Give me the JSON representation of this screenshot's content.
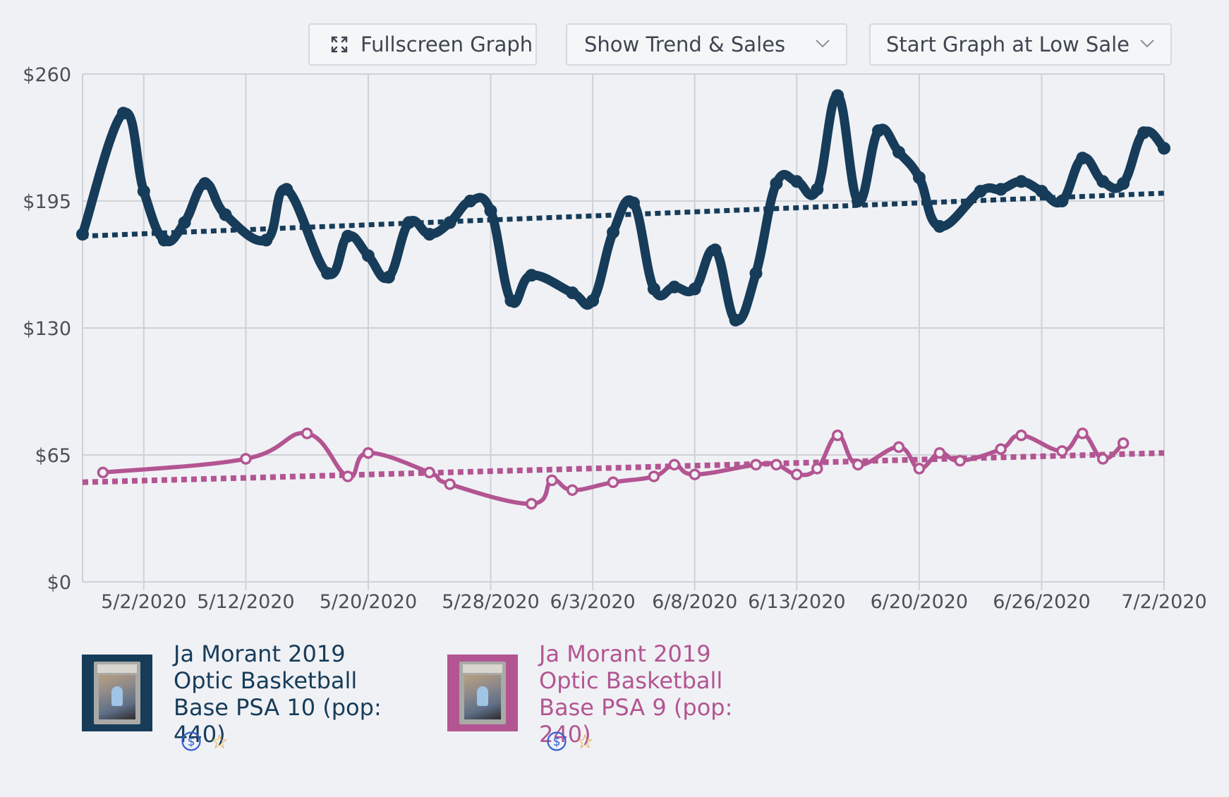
{
  "controls": {
    "fullscreen_label": "Fullscreen Graph",
    "trend_select": "Show Trend & Sales",
    "start_select": "Start Graph at Low Sale"
  },
  "colors": {
    "series1": "#163c59",
    "series2": "#b35592",
    "grid": "#cfd1d6",
    "axis_text": "#4a4f58",
    "icon_blue": "#2f5fd0",
    "icon_star": "#e0a12a"
  },
  "legend": [
    {
      "title": "Ja Morant 2019 Optic Basketball Base PSA 10 (pop: 440)",
      "color": "#163c59",
      "dollar_icon": "$",
      "star_icon": "☆"
    },
    {
      "title": "Ja Morant 2019 Optic Basketball Base PSA 9 (pop: 240)",
      "color": "#b35592",
      "dollar_icon": "$",
      "star_icon": "☆"
    }
  ],
  "chart_data": {
    "type": "line",
    "title": "",
    "xlabel": "",
    "ylabel": "",
    "ylim": [
      0,
      260
    ],
    "xlim": [
      0,
      53
    ],
    "yticks": [
      0,
      65,
      130,
      195,
      260
    ],
    "ytick_labels": [
      "$0",
      "$65",
      "$130",
      "$195",
      "$260"
    ],
    "xticks": [
      {
        "pos": 3,
        "label": "5/2/2020"
      },
      {
        "pos": 8,
        "label": "5/12/2020"
      },
      {
        "pos": 14,
        "label": "5/20/2020"
      },
      {
        "pos": 20,
        "label": "5/28/2020"
      },
      {
        "pos": 25,
        "label": "6/3/2020"
      },
      {
        "pos": 30,
        "label": "6/8/2020"
      },
      {
        "pos": 35,
        "label": "6/13/2020"
      },
      {
        "pos": 41,
        "label": "6/20/2020"
      },
      {
        "pos": 47,
        "label": "6/26/2020"
      },
      {
        "pos": 53,
        "label": "7/2/2020"
      }
    ],
    "grid": true,
    "series": [
      {
        "name": "Ja Morant 2019 Optic Basketball Base PSA 10 (pop: 440)",
        "trend": [
          177,
          199
        ],
        "points": [
          [
            0,
            178
          ],
          [
            2,
            240
          ],
          [
            3,
            200
          ],
          [
            4,
            175
          ],
          [
            5,
            184
          ],
          [
            6,
            204
          ],
          [
            7,
            188
          ],
          [
            9,
            175
          ],
          [
            10,
            201
          ],
          [
            12,
            158
          ],
          [
            13,
            177
          ],
          [
            14,
            167
          ],
          [
            15,
            156
          ],
          [
            16,
            184
          ],
          [
            17,
            178
          ],
          [
            18,
            184
          ],
          [
            19,
            195
          ],
          [
            20,
            190
          ],
          [
            21,
            144
          ],
          [
            22,
            157
          ],
          [
            24,
            148
          ],
          [
            25,
            144
          ],
          [
            26,
            179
          ],
          [
            27,
            194
          ],
          [
            28,
            150
          ],
          [
            29,
            151
          ],
          [
            30,
            150
          ],
          [
            31,
            170
          ],
          [
            32,
            134
          ],
          [
            33,
            158
          ],
          [
            34,
            204
          ],
          [
            35,
            205
          ],
          [
            36,
            201
          ],
          [
            37,
            249
          ],
          [
            38,
            195
          ],
          [
            39,
            231
          ],
          [
            40,
            220
          ],
          [
            41,
            207
          ],
          [
            42,
            182
          ],
          [
            44,
            200
          ],
          [
            45,
            201
          ],
          [
            46,
            205
          ],
          [
            47,
            200
          ],
          [
            48,
            195
          ],
          [
            49,
            217
          ],
          [
            50,
            205
          ],
          [
            51,
            204
          ],
          [
            52,
            230
          ],
          [
            53,
            222
          ]
        ]
      },
      {
        "name": "Ja Morant 2019 Optic Basketball Base PSA 9 (pop: 240)",
        "trend": [
          51,
          66
        ],
        "points": [
          [
            1,
            56
          ],
          [
            8,
            63
          ],
          [
            11,
            76
          ],
          [
            13,
            54
          ],
          [
            14,
            66
          ],
          [
            17,
            56
          ],
          [
            18,
            50
          ],
          [
            22,
            40
          ],
          [
            23,
            52
          ],
          [
            24,
            47
          ],
          [
            26,
            51
          ],
          [
            28,
            54
          ],
          [
            29,
            60
          ],
          [
            30,
            55
          ],
          [
            33,
            60
          ],
          [
            34,
            60
          ],
          [
            35,
            55
          ],
          [
            36,
            58
          ],
          [
            37,
            75
          ],
          [
            38,
            60
          ],
          [
            40,
            69
          ],
          [
            41,
            58
          ],
          [
            42,
            66
          ],
          [
            43,
            62
          ],
          [
            45,
            68
          ],
          [
            46,
            75
          ],
          [
            48,
            67
          ],
          [
            49,
            76
          ],
          [
            50,
            63
          ],
          [
            51,
            71
          ]
        ]
      }
    ]
  }
}
